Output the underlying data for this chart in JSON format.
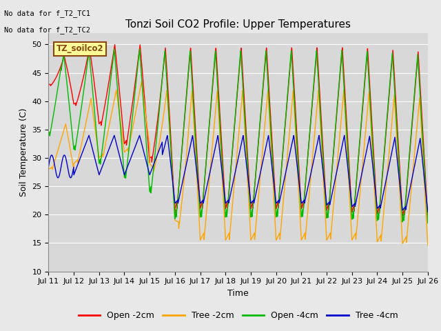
{
  "title": "Tonzi Soil CO2 Profile: Upper Temperatures",
  "xlabel": "Time",
  "ylabel": "Soil Temperature (C)",
  "ylim": [
    10,
    52
  ],
  "xlim": [
    0,
    15
  ],
  "annotation1": "No data for f_T2_TC1",
  "annotation2": "No data for f_T2_TC2",
  "file_label": "TZ_soilco2",
  "legend_entries": [
    "Open -2cm",
    "Tree -2cm",
    "Open -4cm",
    "Tree -4cm"
  ],
  "legend_colors": [
    "#ff0000",
    "#ffa500",
    "#00bb00",
    "#0000cc"
  ],
  "line_colors": {
    "open_2cm": "#ff0000",
    "tree_2cm": "#ffa500",
    "open_4cm": "#00bb00",
    "tree_4cm": "#0000cc"
  },
  "xtick_labels": [
    "Jul 11",
    "Jul 12",
    "Jul 13",
    "Jul 14",
    "Jul 15",
    "Jul 16",
    "Jul 17",
    "Jul 18",
    "Jul 19",
    "Jul 20",
    "Jul 21",
    "Jul 22",
    "Jul 23",
    "Jul 24",
    "Jul 25",
    "Jul 26"
  ],
  "background_color": "#e8e8e8",
  "plot_bg_color": "#d8d8d8",
  "grid_color": "#ffffff",
  "title_fontsize": 11,
  "axis_label_fontsize": 9,
  "tick_fontsize": 8,
  "legend_fontsize": 9
}
